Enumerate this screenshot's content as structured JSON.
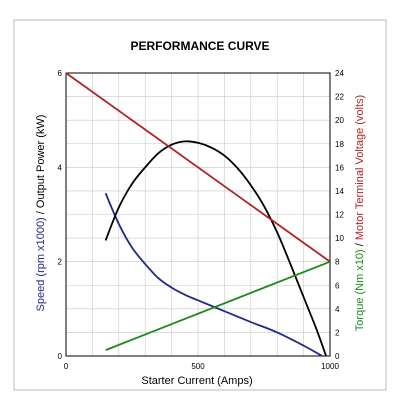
{
  "chart_data": {
    "type": "line",
    "title": "PERFORMANCE CURVE",
    "xlabel": "Starter Current (Amps)",
    "ylabel_left": {
      "part1": "Speed (rpm x1000)",
      "separator": " / ",
      "part2": "Output Power (kW)"
    },
    "ylabel_right": {
      "part1": "Torque (Nm x10)",
      "separator": " / ",
      "part2": "Motor Terminal Voltage (volts)"
    },
    "xlim": [
      0,
      1000
    ],
    "ylim_left": [
      0,
      6
    ],
    "ylim_right": [
      0,
      24
    ],
    "x_ticks": [
      0,
      500,
      1000
    ],
    "y_left_ticks": [
      0,
      2,
      4,
      6
    ],
    "y_right_ticks": [
      0,
      2,
      4,
      6,
      8,
      10,
      12,
      14,
      16,
      18,
      20,
      22,
      24
    ],
    "grid": true,
    "colors": {
      "speed": "#1f2a8a",
      "power": "#000000",
      "torque": "#1e8a1e",
      "voltage": "#b22222",
      "speed_label": "#1f2a8a",
      "torque_label": "#1e8a1e",
      "voltage_label": "#b22222"
    },
    "series": [
      {
        "key": "speed",
        "axis": "left",
        "color": "#1f2a8a",
        "x": [
          150,
          200,
          250,
          300,
          350,
          400,
          450,
          500,
          600,
          700,
          800,
          900,
          970
        ],
        "y": [
          3.45,
          2.8,
          2.3,
          1.95,
          1.65,
          1.45,
          1.3,
          1.18,
          0.95,
          0.72,
          0.5,
          0.22,
          0.0
        ]
      },
      {
        "key": "power",
        "axis": "left",
        "color": "#000000",
        "x": [
          150,
          200,
          250,
          300,
          350,
          400,
          450,
          500,
          550,
          600,
          650,
          700,
          750,
          800,
          850,
          900,
          950,
          985
        ],
        "y": [
          2.45,
          3.15,
          3.65,
          4.0,
          4.3,
          4.48,
          4.55,
          4.52,
          4.42,
          4.25,
          3.98,
          3.62,
          3.18,
          2.62,
          1.95,
          1.25,
          0.55,
          0.0
        ]
      },
      {
        "key": "torque",
        "axis": "right",
        "color": "#1e8a1e",
        "x": [
          150,
          1000
        ],
        "y": [
          0.5,
          8
        ]
      },
      {
        "key": "voltage",
        "axis": "right",
        "color": "#b22222",
        "x": [
          0,
          1000
        ],
        "y": [
          24,
          8
        ]
      }
    ]
  }
}
